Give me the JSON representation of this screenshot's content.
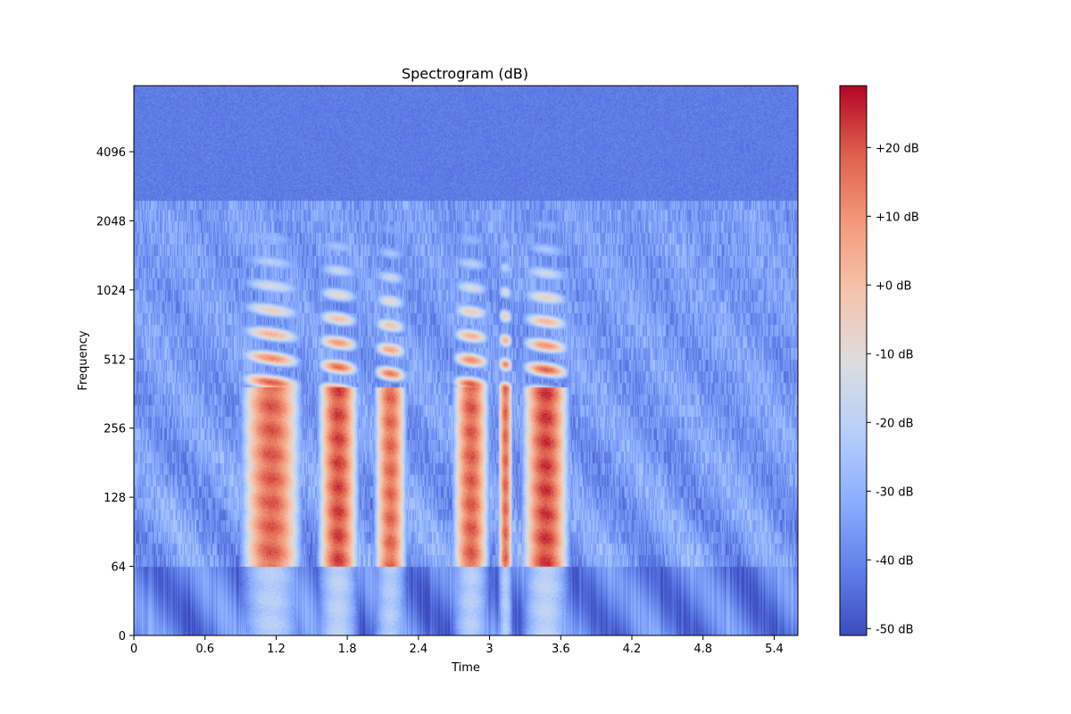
{
  "chart_data": {
    "type": "heatmap",
    "title": "Spectrogram (dB)",
    "xlabel": "Time",
    "ylabel": "Frequency",
    "xlim": [
      0,
      5.6
    ],
    "x_scale": "linear",
    "y_scale": "log2 (symlog, 0 at bottom)",
    "x_ticks": [
      {
        "value": 0,
        "label": "0"
      },
      {
        "value": 0.6,
        "label": "0.6"
      },
      {
        "value": 1.2,
        "label": "1.2"
      },
      {
        "value": 1.8,
        "label": "1.8"
      },
      {
        "value": 2.4,
        "label": "2.4"
      },
      {
        "value": 3.0,
        "label": "3"
      },
      {
        "value": 3.6,
        "label": "3.6"
      },
      {
        "value": 4.2,
        "label": "4.2"
      },
      {
        "value": 4.8,
        "label": "4.8"
      },
      {
        "value": 5.4,
        "label": "5.4"
      }
    ],
    "y_ticks": [
      {
        "value": 0,
        "label": "0"
      },
      {
        "value": 64,
        "label": "64"
      },
      {
        "value": 128,
        "label": "128"
      },
      {
        "value": 256,
        "label": "256"
      },
      {
        "value": 512,
        "label": "512"
      },
      {
        "value": 1024,
        "label": "1024"
      },
      {
        "value": 2048,
        "label": "2048"
      },
      {
        "value": 4096,
        "label": "4096"
      }
    ],
    "colorbar": {
      "colormap": "coolwarm",
      "range_db": [
        -51,
        29
      ],
      "ticks": [
        {
          "value": -50,
          "label": "-50 dB"
        },
        {
          "value": -40,
          "label": "-40 dB"
        },
        {
          "value": -30,
          "label": "-30 dB"
        },
        {
          "value": -20,
          "label": "-20 dB"
        },
        {
          "value": -10,
          "label": "-10 dB"
        },
        {
          "value": 0,
          "label": "+0 dB"
        },
        {
          "value": 10,
          "label": "+10 dB"
        },
        {
          "value": 20,
          "label": "+20 dB"
        }
      ]
    },
    "speech_segments_s": [
      {
        "start": 0.86,
        "end": 1.45,
        "peak_db": 24
      },
      {
        "start": 1.52,
        "end": 1.92,
        "peak_db": 27
      },
      {
        "start": 2.0,
        "end": 2.32,
        "peak_db": 22
      },
      {
        "start": 2.66,
        "end": 3.02,
        "peak_db": 24
      },
      {
        "start": 3.06,
        "end": 3.2,
        "peak_db": 22
      },
      {
        "start": 3.24,
        "end": 3.7,
        "peak_db": 28
      }
    ],
    "background_db": -50
  }
}
